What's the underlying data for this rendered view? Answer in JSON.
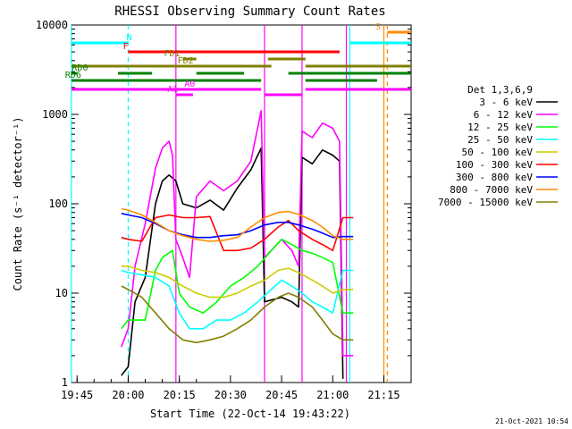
{
  "chart_data": {
    "type": "line",
    "title": "RHESSI Observing Summary Count Rates",
    "xlabel": "Start Time (22-Oct-14 19:43:22)",
    "ylabel": "Count Rate (s⁻¹ detector⁻¹)",
    "y_scale": "log",
    "ylim": [
      1,
      10000
    ],
    "xlim": [
      "19:43:22",
      "21:23:00"
    ],
    "x_ticks": [
      "19:45",
      "20:00",
      "20:15",
      "20:30",
      "20:45",
      "21:00",
      "21:15"
    ],
    "y_ticks": [
      "1",
      "10",
      "100",
      "1000",
      "10000"
    ],
    "grid": false,
    "legend_position": "right",
    "legend_title": "Det 1,3,6,9",
    "timestamp": "21-Oct-2021 10:54",
    "series": [
      {
        "name": "3 - 6 keV",
        "color": "#000000",
        "points": [
          [
            "19:58",
            1.2
          ],
          [
            "20:00",
            1.5
          ],
          [
            "20:02",
            8
          ],
          [
            "20:05",
            15
          ],
          [
            "20:08",
            100
          ],
          [
            "20:10",
            180
          ],
          [
            "20:12",
            210
          ],
          [
            "20:14",
            180
          ],
          [
            "20:16",
            100
          ],
          [
            "20:20",
            90
          ],
          [
            "20:24",
            110
          ],
          [
            "20:28",
            85
          ],
          [
            "20:32",
            150
          ],
          [
            "20:36",
            240
          ],
          [
            "20:39",
            420
          ],
          [
            "20:40",
            8
          ],
          [
            "20:45",
            9
          ],
          [
            "20:48",
            8
          ],
          [
            "20:50",
            7
          ],
          [
            "20:51",
            330
          ],
          [
            "20:54",
            280
          ],
          [
            "20:57",
            400
          ],
          [
            "21:00",
            350
          ],
          [
            "21:02",
            300
          ],
          [
            "21:03",
            1.1
          ]
        ]
      },
      {
        "name": "6 - 12 keV",
        "color": "#ff00ff",
        "points": [
          [
            "19:58",
            2.5
          ],
          [
            "20:00",
            4
          ],
          [
            "20:02",
            20
          ],
          [
            "20:05",
            60
          ],
          [
            "20:08",
            250
          ],
          [
            "20:10",
            420
          ],
          [
            "20:12",
            500
          ],
          [
            "20:13",
            350
          ],
          [
            "20:14",
            40
          ],
          [
            "20:16",
            25
          ],
          [
            "20:18",
            15
          ],
          [
            "20:20",
            120
          ],
          [
            "20:24",
            180
          ],
          [
            "20:28",
            140
          ],
          [
            "20:32",
            180
          ],
          [
            "20:36",
            300
          ],
          [
            "20:39",
            1100
          ],
          [
            "20:40",
            25
          ],
          [
            "20:45",
            40
          ],
          [
            "20:48",
            30
          ],
          [
            "20:50",
            20
          ],
          [
            "20:51",
            650
          ],
          [
            "20:54",
            550
          ],
          [
            "20:57",
            800
          ],
          [
            "21:00",
            700
          ],
          [
            "21:02",
            500
          ],
          [
            "21:03",
            2
          ],
          [
            "21:06",
            2
          ]
        ]
      },
      {
        "name": "12 - 25 keV",
        "color": "#00ff00",
        "points": [
          [
            "19:58",
            4
          ],
          [
            "20:00",
            5
          ],
          [
            "20:05",
            5
          ],
          [
            "20:08",
            18
          ],
          [
            "20:10",
            25
          ],
          [
            "20:13",
            30
          ],
          [
            "20:15",
            10
          ],
          [
            "20:18",
            7
          ],
          [
            "20:22",
            6
          ],
          [
            "20:26",
            8
          ],
          [
            "20:30",
            12
          ],
          [
            "20:34",
            15
          ],
          [
            "20:38",
            20
          ],
          [
            "20:42",
            30
          ],
          [
            "20:45",
            40
          ],
          [
            "20:48",
            35
          ],
          [
            "20:51",
            30
          ],
          [
            "20:54",
            28
          ],
          [
            "20:57",
            25
          ],
          [
            "21:00",
            22
          ],
          [
            "21:03",
            6
          ],
          [
            "21:06",
            6
          ]
        ]
      },
      {
        "name": "25 - 50 keV",
        "color": "#00ffff",
        "points": [
          [
            "19:58",
            18
          ],
          [
            "20:00",
            17
          ],
          [
            "20:04",
            16
          ],
          [
            "20:08",
            15
          ],
          [
            "20:12",
            12
          ],
          [
            "20:15",
            6
          ],
          [
            "20:18",
            4
          ],
          [
            "20:22",
            4
          ],
          [
            "20:26",
            5
          ],
          [
            "20:30",
            5
          ],
          [
            "20:34",
            6
          ],
          [
            "20:38",
            8
          ],
          [
            "20:42",
            11
          ],
          [
            "20:45",
            14
          ],
          [
            "20:48",
            12
          ],
          [
            "20:51",
            10
          ],
          [
            "20:54",
            8
          ],
          [
            "20:57",
            7
          ],
          [
            "21:00",
            6
          ],
          [
            "21:03",
            18
          ],
          [
            "21:06",
            18
          ]
        ]
      },
      {
        "name": "50 - 100 keV",
        "color": "#cccc00",
        "points": [
          [
            "19:58",
            20
          ],
          [
            "20:00",
            20
          ],
          [
            "20:04",
            18
          ],
          [
            "20:08",
            17
          ],
          [
            "20:12",
            15
          ],
          [
            "20:16",
            12
          ],
          [
            "20:20",
            10
          ],
          [
            "20:24",
            9
          ],
          [
            "20:28",
            9
          ],
          [
            "20:32",
            10
          ],
          [
            "20:36",
            12
          ],
          [
            "20:40",
            14
          ],
          [
            "20:44",
            18
          ],
          [
            "20:47",
            19
          ],
          [
            "20:50",
            17
          ],
          [
            "20:54",
            14
          ],
          [
            "20:57",
            12
          ],
          [
            "21:00",
            10
          ],
          [
            "21:03",
            11
          ],
          [
            "21:06",
            11
          ]
        ]
      },
      {
        "name": "100 - 300 keV",
        "color": "#ff0000",
        "points": [
          [
            "19:58",
            42
          ],
          [
            "20:00",
            40
          ],
          [
            "20:04",
            38
          ],
          [
            "20:08",
            70
          ],
          [
            "20:12",
            75
          ],
          [
            "20:16",
            70
          ],
          [
            "20:20",
            70
          ],
          [
            "20:24",
            72
          ],
          [
            "20:28",
            30
          ],
          [
            "20:32",
            30
          ],
          [
            "20:36",
            32
          ],
          [
            "20:40",
            40
          ],
          [
            "20:44",
            55
          ],
          [
            "20:47",
            65
          ],
          [
            "20:50",
            50
          ],
          [
            "20:54",
            40
          ],
          [
            "20:57",
            35
          ],
          [
            "21:00",
            30
          ],
          [
            "21:03",
            70
          ],
          [
            "21:06",
            70
          ]
        ]
      },
      {
        "name": "300 - 800 keV",
        "color": "#0000ff",
        "points": [
          [
            "19:58",
            78
          ],
          [
            "20:00",
            75
          ],
          [
            "20:04",
            70
          ],
          [
            "20:08",
            60
          ],
          [
            "20:12",
            50
          ],
          [
            "20:16",
            45
          ],
          [
            "20:20",
            42
          ],
          [
            "20:24",
            42
          ],
          [
            "20:28",
            44
          ],
          [
            "20:32",
            45
          ],
          [
            "20:36",
            50
          ],
          [
            "20:40",
            58
          ],
          [
            "20:44",
            62
          ],
          [
            "20:47",
            62
          ],
          [
            "20:50",
            58
          ],
          [
            "20:54",
            52
          ],
          [
            "20:57",
            47
          ],
          [
            "21:00",
            42
          ],
          [
            "21:03",
            43
          ],
          [
            "21:06",
            43
          ]
        ]
      },
      {
        "name": "800 - 7000 keV",
        "color": "#ff8c00",
        "points": [
          [
            "19:58",
            88
          ],
          [
            "20:00",
            85
          ],
          [
            "20:04",
            75
          ],
          [
            "20:08",
            62
          ],
          [
            "20:12",
            50
          ],
          [
            "20:16",
            44
          ],
          [
            "20:20",
            40
          ],
          [
            "20:24",
            38
          ],
          [
            "20:28",
            39
          ],
          [
            "20:32",
            42
          ],
          [
            "20:36",
            55
          ],
          [
            "20:40",
            70
          ],
          [
            "20:44",
            80
          ],
          [
            "20:47",
            82
          ],
          [
            "20:50",
            76
          ],
          [
            "20:54",
            65
          ],
          [
            "20:57",
            55
          ],
          [
            "21:00",
            44
          ],
          [
            "21:03",
            40
          ],
          [
            "21:06",
            40
          ]
        ]
      },
      {
        "name": "7000 - 15000 keV",
        "color": "#808000",
        "points": [
          [
            "19:58",
            12
          ],
          [
            "20:00",
            11
          ],
          [
            "20:04",
            9
          ],
          [
            "20:08",
            6
          ],
          [
            "20:12",
            4
          ],
          [
            "20:16",
            3
          ],
          [
            "20:20",
            2.8
          ],
          [
            "20:24",
            3
          ],
          [
            "20:28",
            3.3
          ],
          [
            "20:32",
            4
          ],
          [
            "20:36",
            5
          ],
          [
            "20:40",
            7
          ],
          [
            "20:44",
            9
          ],
          [
            "20:47",
            10
          ],
          [
            "20:50",
            9
          ],
          [
            "20:54",
            7
          ],
          [
            "20:57",
            5
          ],
          [
            "21:00",
            3.5
          ],
          [
            "21:03",
            3
          ],
          [
            "21:06",
            3
          ]
        ]
      }
    ],
    "flags": [
      {
        "label": "S",
        "color": "#ff8c00",
        "segments": [
          [
            "21:16",
            "21:23"
          ]
        ]
      },
      {
        "label": "N",
        "color": "#00ffff",
        "segments": [
          [
            "19:43:22",
            "20:00"
          ],
          [
            "21:05",
            "21:23"
          ]
        ]
      },
      {
        "label": "F",
        "color": "#ff0000",
        "segments": [
          [
            "20:00",
            "21:02"
          ]
        ]
      },
      {
        "label": "FD1",
        "color": "#808000",
        "segments": [
          [
            "20:16",
            "20:20"
          ],
          [
            "20:41",
            "20:52"
          ]
        ]
      },
      {
        "label": "FD2",
        "color": "#808000",
        "segments": [
          [
            "19:43:22",
            "20:42"
          ],
          [
            "20:52",
            "21:23"
          ]
        ]
      },
      {
        "label": "RD0",
        "color": "#008000",
        "segments": [
          [
            "19:43:22",
            "19:45"
          ],
          [
            "19:57",
            "20:07"
          ],
          [
            "20:20",
            "20:34"
          ],
          [
            "20:47",
            "21:23"
          ]
        ]
      },
      {
        "label": "RD6",
        "color": "#008000",
        "segments": [
          [
            "19:43:22",
            "20:39"
          ],
          [
            "20:52",
            "21:13"
          ]
        ]
      },
      {
        "label": "A0",
        "color": "#ff00ff",
        "segments": [
          [
            "19:43:22",
            "20:39"
          ],
          [
            "20:52",
            "21:23"
          ]
        ]
      },
      {
        "label": "A1",
        "color": "#ff00ff",
        "segments": [
          [
            "20:14",
            "20:19"
          ],
          [
            "20:40",
            "20:51"
          ]
        ]
      }
    ],
    "markers": [
      {
        "time": "19:43:22",
        "color": "#00ffff",
        "style": "solid"
      },
      {
        "time": "20:00",
        "color": "#00ffff",
        "style": "dashed"
      },
      {
        "time": "21:05",
        "color": "#00ffff",
        "style": "solid"
      },
      {
        "time": "21:15",
        "color": "#ff8c00",
        "style": "solid"
      },
      {
        "time": "21:16",
        "color": "#ff8c00",
        "style": "dashed"
      },
      {
        "time": "20:14",
        "color": "#ff00ff",
        "style": "solid"
      },
      {
        "time": "20:40",
        "color": "#ff00ff",
        "style": "solid"
      },
      {
        "time": "20:51",
        "color": "#ff00ff",
        "style": "solid"
      },
      {
        "time": "21:04",
        "color": "#ff00ff",
        "style": "solid"
      }
    ]
  }
}
